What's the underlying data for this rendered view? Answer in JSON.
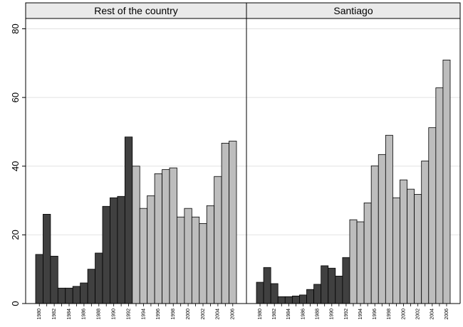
{
  "chart_data": [
    {
      "type": "bar",
      "title": "Rest of the country",
      "categories": [
        "1980",
        null,
        "1982",
        null,
        "1984",
        null,
        "1986",
        null,
        "1988",
        null,
        "1990",
        null,
        "1992",
        null,
        "1994",
        null,
        "1996",
        null,
        "1998",
        null,
        "2000",
        null,
        "2002",
        null,
        "2004",
        null,
        "2006"
      ],
      "values": [
        14.3,
        26,
        13.8,
        4.5,
        4.5,
        5,
        6,
        10,
        14.7,
        28.3,
        30.8,
        31.2,
        48.5,
        40,
        27.7,
        31.4,
        37.8,
        39,
        39.5,
        25.2,
        27.7,
        25.2,
        23.3,
        28.5,
        37,
        46.7,
        47.3
      ],
      "colors": [
        "#404040",
        "#404040",
        "#404040",
        "#404040",
        "#404040",
        "#404040",
        "#404040",
        "#404040",
        "#404040",
        "#404040",
        "#404040",
        "#404040",
        "#404040",
        "#bdbdbd",
        "#bdbdbd",
        "#bdbdbd",
        "#bdbdbd",
        "#bdbdbd",
        "#bdbdbd",
        "#bdbdbd",
        "#bdbdbd",
        "#bdbdbd",
        "#bdbdbd",
        "#bdbdbd",
        "#bdbdbd",
        "#bdbdbd",
        "#bdbdbd"
      ],
      "ylim": [
        0,
        83
      ],
      "yticks": [
        0,
        20,
        40,
        60,
        80
      ],
      "grid": true
    },
    {
      "type": "bar",
      "title": "Santiago",
      "categories": [
        "1980",
        null,
        "1982",
        null,
        "1984",
        null,
        "1986",
        null,
        "1988",
        null,
        "1990",
        null,
        "1992",
        null,
        "1994",
        null,
        "1996",
        null,
        "1998",
        null,
        "2000",
        null,
        "2002",
        null,
        "2004",
        null,
        "2006"
      ],
      "values": [
        6.2,
        10.5,
        5.8,
        2,
        2,
        2.2,
        2.5,
        4.1,
        5.6,
        11,
        10.3,
        8,
        13.4,
        24.4,
        23.8,
        29.3,
        40.1,
        43.4,
        49,
        30.8,
        36,
        33.3,
        31.8,
        41.5,
        51.2,
        62.8,
        70.9
      ],
      "colors": [
        "#404040",
        "#404040",
        "#404040",
        "#404040",
        "#404040",
        "#404040",
        "#404040",
        "#404040",
        "#404040",
        "#404040",
        "#404040",
        "#404040",
        "#404040",
        "#bdbdbd",
        "#bdbdbd",
        "#bdbdbd",
        "#bdbdbd",
        "#bdbdbd",
        "#bdbdbd",
        "#bdbdbd",
        "#bdbdbd",
        "#bdbdbd",
        "#bdbdbd",
        "#bdbdbd",
        "#bdbdbd",
        "#bdbdbd",
        "#bdbdbd"
      ],
      "ylim": [
        0,
        83
      ],
      "yticks": [
        0,
        20,
        40,
        60,
        80
      ],
      "grid": true
    }
  ]
}
